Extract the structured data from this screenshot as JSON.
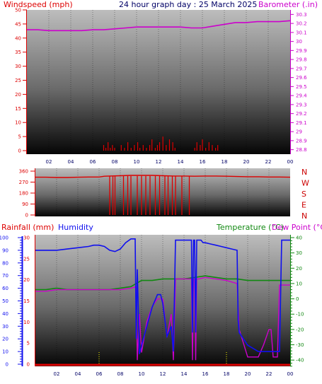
{
  "title": "24 hour graph day : 25 March 2025",
  "colors": {
    "wind": "#dd0000",
    "baro": "#cc00cc",
    "rain": "#dd0000",
    "humidity": "#1010ee",
    "temperature": "#118811",
    "dewpoint": "#cc00cc",
    "tickcolor": "#ff0000",
    "hour_label": "#000066",
    "dir_label": "#cc0000"
  },
  "x_labels": [
    "02",
    "04",
    "06",
    "08",
    "10",
    "12",
    "14",
    "16",
    "18",
    "20",
    "22",
    "00"
  ],
  "chart_data": [
    {
      "type": "line",
      "name": "wind-baro",
      "title": "24 hour graph day : 25 March 2025",
      "left_label": "Windspeed (mph)",
      "right_label": "Barometer (.in)",
      "left_ticks": [
        "0",
        "5",
        "10",
        "15",
        "20",
        "25",
        "30",
        "35",
        "40",
        "45",
        "50"
      ],
      "left_range": [
        0,
        50
      ],
      "right_ticks": [
        "28.8",
        "28.9",
        "29",
        "29.1",
        "29.2",
        "29.3",
        "29.4",
        "29.5",
        "29.6",
        "29.7",
        "29.8",
        "29.9",
        "30",
        "30.1",
        "30.2",
        "30.3"
      ],
      "right_range": [
        28.75,
        30.35
      ],
      "barometer": {
        "x": [
          0,
          1,
          2,
          3,
          4,
          5,
          6,
          7,
          8,
          9,
          10,
          11,
          12,
          13,
          14,
          15,
          16,
          17,
          18,
          19,
          20,
          21,
          22,
          23,
          24
        ],
        "y": [
          30.13,
          30.13,
          30.12,
          30.12,
          30.12,
          30.12,
          30.13,
          30.13,
          30.14,
          30.15,
          30.16,
          30.16,
          30.16,
          30.16,
          30.16,
          30.15,
          30.15,
          30.17,
          30.19,
          30.21,
          30.21,
          30.22,
          30.22,
          30.22,
          30.23
        ]
      },
      "wind": {
        "x": [
          7.0,
          7.2,
          7.4,
          7.6,
          7.8,
          8.0,
          8.6,
          8.9,
          9.2,
          9.5,
          9.8,
          10.1,
          10.3,
          10.6,
          10.9,
          11.2,
          11.4,
          11.7,
          11.9,
          12.1,
          12.4,
          12.7,
          13.0,
          13.3,
          13.5,
          15.3,
          15.5,
          15.8,
          16.0,
          16.3,
          16.6,
          16.9,
          17.2,
          17.4
        ],
        "y": [
          2,
          1,
          3,
          1,
          2,
          1,
          2,
          1,
          3,
          1,
          2,
          3,
          1,
          2,
          1,
          2,
          4,
          1,
          2,
          3,
          5,
          2,
          4,
          3,
          1,
          1,
          3,
          2,
          4,
          1,
          3,
          2,
          1,
          2
        ]
      }
    },
    {
      "type": "line",
      "name": "wind-direction",
      "left_ticks": [
        "0",
        "90",
        "180",
        "270",
        "360"
      ],
      "left_range": [
        0,
        360
      ],
      "right_labels": [
        "N",
        "W",
        "S",
        "E",
        "N"
      ],
      "direction": {
        "x": [
          0,
          1,
          2,
          3,
          4,
          5,
          6,
          6.5,
          7,
          8,
          9,
          10,
          11,
          12,
          13,
          14,
          15,
          16,
          17,
          18,
          19,
          20,
          21,
          22,
          23,
          24
        ],
        "y": [
          310,
          310,
          308,
          308,
          310,
          312,
          312,
          318,
          320,
          322,
          325,
          325,
          325,
          322,
          320,
          320,
          318,
          320,
          320,
          318,
          316,
          314,
          314,
          312,
          312,
          310
        ],
        "drops": [
          7.0,
          7.3,
          7.5,
          8.3,
          8.7,
          9.0,
          9.6,
          10.0,
          10.4,
          10.8,
          11.3,
          11.7,
          12.2,
          12.5,
          12.9,
          13.2,
          13.8,
          14.5
        ]
      }
    },
    {
      "type": "line",
      "name": "rain-humidity-temperature",
      "left_labels": [
        "Rainfall (mm)",
        "Humidity"
      ],
      "right_labels": [
        "Temperature (°C)",
        "Dew Point (°C)"
      ],
      "rain_ticks": [
        "0",
        "5",
        "10",
        "15",
        "20",
        "25",
        "30"
      ],
      "rain_range": [
        0,
        30
      ],
      "humidity_ticks": [
        "0",
        "10",
        "20",
        "30",
        "40",
        "50",
        "60",
        "70",
        "80",
        "90",
        "100"
      ],
      "humidity_range": [
        0,
        100
      ],
      "temp_ticks": [
        "-40",
        "-30",
        "-20",
        "-10",
        "0",
        "10",
        "20",
        "30",
        "40"
      ],
      "temp_range": [
        -45,
        40
      ],
      "rain": {
        "x": [
          0,
          24
        ],
        "y": [
          0,
          0
        ]
      },
      "humidity": {
        "x": [
          0,
          1,
          2,
          3,
          4,
          5,
          5.5,
          6,
          6.5,
          7,
          7.5,
          8,
          8.5,
          9,
          9.4,
          9.5,
          9.6,
          9.8,
          10.0,
          10.5,
          11.0,
          11.5,
          11.8,
          12.0,
          12.4,
          12.8,
          13.0,
          13.2,
          13.4,
          13.6,
          14.0,
          14.5,
          14.7,
          14.8,
          14.9,
          15.0,
          15.1,
          15.2,
          15.4,
          15.6,
          15.8,
          16.0,
          16.5,
          17.0,
          17.5,
          18.0,
          18.5,
          19.0,
          19.1,
          19.2,
          20,
          21,
          22,
          23,
          23.2,
          23.5,
          24
        ],
        "y": [
          90,
          90,
          90,
          91,
          92,
          93,
          94,
          94,
          93,
          90,
          89,
          91,
          96,
          99,
          99,
          20,
          75,
          8,
          15,
          30,
          45,
          55,
          55,
          48,
          22,
          30,
          10,
          98,
          98,
          98,
          98,
          98,
          98,
          25,
          98,
          98,
          25,
          98,
          98,
          98,
          96,
          96,
          95,
          94,
          93,
          92,
          91,
          90,
          35,
          25,
          15,
          10,
          10,
          10,
          98,
          98,
          98
        ]
      },
      "temperature": {
        "x": [
          0,
          1,
          2,
          3,
          4,
          5,
          6,
          7,
          8,
          9,
          9.5,
          10,
          11,
          12,
          13,
          14,
          15,
          16,
          17,
          18,
          19,
          20,
          21,
          22,
          23,
          24
        ],
        "y": [
          6,
          6,
          7,
          6,
          6,
          6,
          6,
          6,
          7,
          8,
          10,
          12,
          12,
          13,
          13,
          13,
          14,
          15,
          14,
          13,
          13,
          12,
          12,
          12,
          12,
          12
        ]
      },
      "dewpoint": {
        "x": [
          0,
          1,
          2,
          3,
          4,
          5,
          6,
          7,
          8,
          9,
          9.5,
          9.6,
          9.8,
          10.0,
          10.5,
          11.0,
          11.5,
          12.0,
          12.4,
          12.8,
          13.0,
          13.2,
          14.0,
          14.5,
          14.7,
          14.8,
          14.9,
          15.0,
          15.1,
          15.2,
          15.4,
          16,
          17,
          18,
          19,
          19.2,
          20,
          20.5,
          21,
          21.5,
          22,
          22.2,
          22.4,
          22.8,
          23,
          24
        ],
        "y": [
          5,
          5,
          6,
          6,
          6,
          6,
          6,
          6,
          6,
          7,
          8,
          -40,
          -10,
          -35,
          -15,
          -5,
          0,
          0,
          -25,
          -10,
          -40,
          13,
          13,
          13,
          13,
          -40,
          13,
          13,
          -40,
          13,
          13,
          14,
          13,
          12,
          10,
          -20,
          -38,
          -38,
          -38,
          -30,
          -20,
          -20,
          -38,
          -38,
          9,
          9
        ]
      }
    }
  ]
}
